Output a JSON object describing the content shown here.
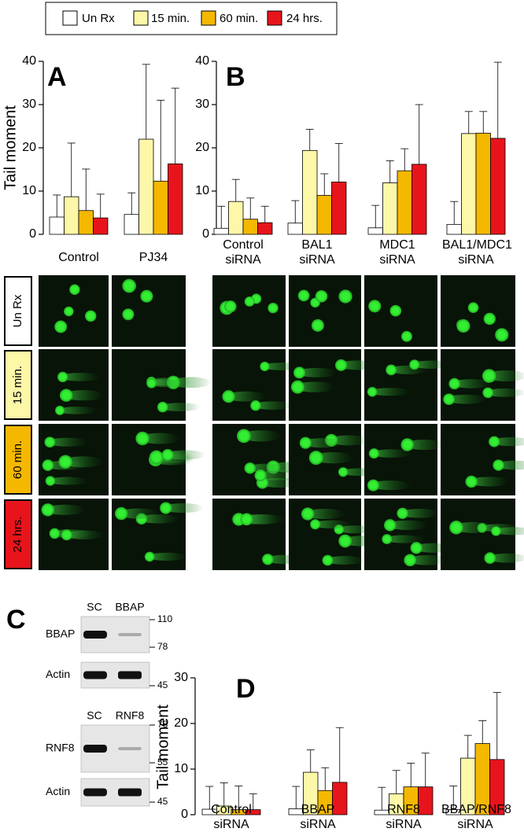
{
  "chart_data": [
    {
      "type": "bar",
      "panel": "A",
      "ylabel": "Tail moment",
      "categories": [
        "Control",
        "PJ34"
      ],
      "series": [
        {
          "name": "Un Rx",
          "color": "#ffffff",
          "values": [
            4,
            4.6
          ],
          "errors": [
            5.1,
            5
          ]
        },
        {
          "name": "15 min.",
          "color": "#fdf7a8",
          "values": [
            8.7,
            22
          ],
          "errors": [
            12.4,
            17.3
          ]
        },
        {
          "name": "60 min.",
          "color": "#f5b800",
          "values": [
            5.5,
            12.3
          ],
          "errors": [
            9.6,
            18.7
          ]
        },
        {
          "name": "24 hrs.",
          "color": "#e8141b",
          "values": [
            3.8,
            16.3
          ],
          "errors": [
            5.5,
            17.5
          ]
        }
      ],
      "ylim": [
        0,
        40
      ],
      "yticks": [
        0,
        10,
        20,
        30,
        40
      ]
    },
    {
      "type": "bar",
      "panel": "B",
      "categories": [
        "Control siRNA",
        "BAL1 siRNA",
        "MDC1 siRNA",
        "BAL1/MDC1 siRNA"
      ],
      "series": [
        {
          "name": "Un Rx",
          "color": "#ffffff",
          "values": [
            1.4,
            2.6,
            1.5,
            2.3
          ],
          "errors": [
            5.1,
            5.2,
            5.2,
            5.3
          ]
        },
        {
          "name": "15 min.",
          "color": "#fdf7a8",
          "values": [
            7.6,
            19.4,
            11.9,
            23.3
          ],
          "errors": [
            5.1,
            4.9,
            5.1,
            5.1
          ]
        },
        {
          "name": "60 min.",
          "color": "#f5b800",
          "values": [
            3.5,
            9,
            14.7,
            23.4
          ],
          "errors": [
            4.9,
            5,
            5.1,
            5
          ]
        },
        {
          "name": "24 hrs.",
          "color": "#e8141b",
          "values": [
            2.7,
            12.1,
            16.2,
            22.2
          ],
          "errors": [
            3.8,
            8.9,
            13.8,
            17.6
          ]
        }
      ],
      "ylim": [
        0,
        40
      ],
      "yticks": [
        0,
        10,
        20,
        30,
        40
      ]
    },
    {
      "type": "bar",
      "panel": "D",
      "ylabel": "Tail moment",
      "categories": [
        "Control siRNA",
        "BBAP siRNA",
        "RNF8 siRNA",
        "BBAP/RNF8 siRNA"
      ],
      "series": [
        {
          "name": "Un Rx",
          "color": "#ffffff",
          "values": [
            1.2,
            1.3,
            1,
            1.1
          ],
          "errors": [
            5,
            4.9,
            5,
            5.2
          ]
        },
        {
          "name": "15 min.",
          "color": "#fdf7a8",
          "values": [
            1.9,
            9.3,
            4.6,
            12.4
          ],
          "errors": [
            5.1,
            4.9,
            5.1,
            5
          ]
        },
        {
          "name": "60 min.",
          "color": "#f5b800",
          "values": [
            1.1,
            5.3,
            6.1,
            15.6
          ],
          "errors": [
            5.2,
            5,
            5.2,
            5
          ]
        },
        {
          "name": "24 hrs.",
          "color": "#e8141b",
          "values": [
            1.1,
            7.1,
            6.1,
            12.1
          ],
          "errors": [
            3.5,
            12,
            7.4,
            14.7
          ]
        }
      ],
      "ylim": [
        0,
        30
      ],
      "yticks": [
        0,
        10,
        20,
        30
      ]
    }
  ],
  "comet_rows": [
    "Un Rx",
    "15 min.",
    "60 min.",
    "24 hrs."
  ],
  "western": {
    "panel": "C",
    "blots": [
      {
        "lanes": [
          "SC",
          "BBAP"
        ],
        "bands": [
          {
            "label": "BBAP",
            "markers": [
              110,
              78
            ]
          },
          {
            "label": "Actin",
            "markers": [
              45
            ]
          }
        ]
      },
      {
        "lanes": [
          "SC",
          "RNF8"
        ],
        "bands": [
          {
            "label": "RNF8",
            "markers": [
              78,
              55
            ]
          },
          {
            "label": "Actin",
            "markers": [
              45
            ]
          }
        ]
      }
    ]
  }
}
